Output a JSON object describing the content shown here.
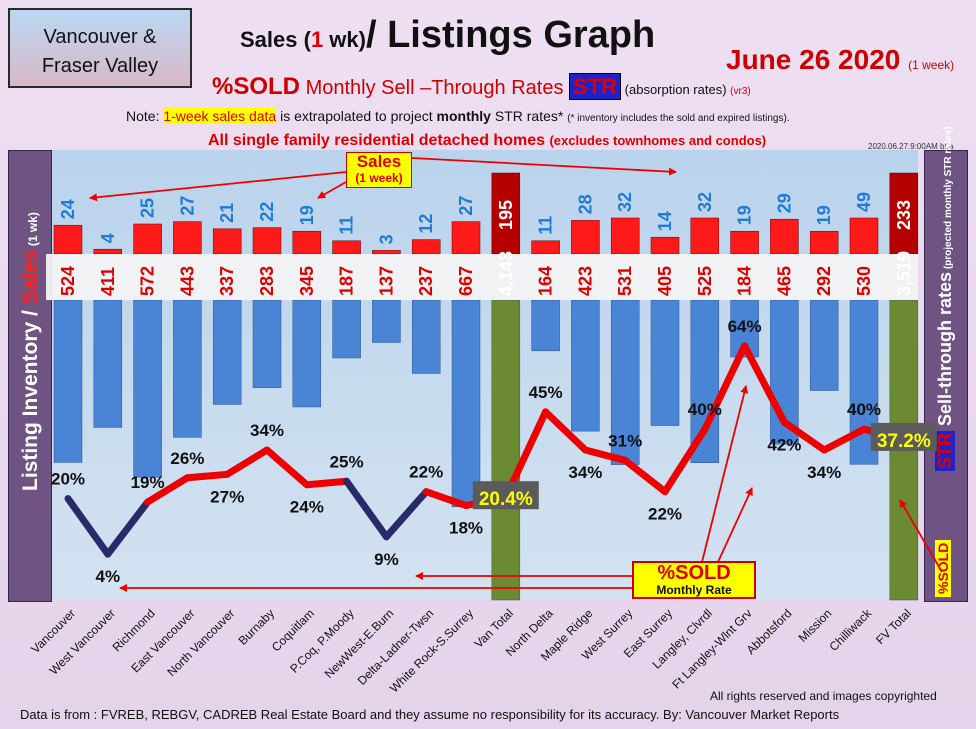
{
  "header": {
    "region_line1": "Vancouver &",
    "region_line2": "Fraser Valley",
    "title_part1": "Sales (",
    "title_1": "1",
    "title_wk": " wk)",
    "title_part2": "/ Listings Graph",
    "date_main": "June 26  2020",
    "date_small": "(1 week)",
    "sub_sold": "%SOLD",
    "sub_text": " Monthly Sell –Through Rates ",
    "sub_str": "STR",
    "sub_abs": " (absorption rates) ",
    "sub_vr": "(vr3)",
    "note_prefix": "Note: ",
    "note_highlight": "1-week sales data",
    "note_mid": " is extrapolated to project ",
    "note_bold": "monthly",
    "note_end": " STR rates* ",
    "note_tiny": "(* inventory includes the sold and expired listings).",
    "scope_main": "All single family residential detached homes ",
    "scope_small": "(excludes townhomes and condos)",
    "stamp": "2020.06.27.9:00AM b5a"
  },
  "labels": {
    "left_axis_a": "Listing Inventory ",
    "left_axis_slash": "/",
    "left_axis_sales": " Sales",
    "left_axis_wk": " (1 wk)",
    "right_axis_main": "Sell-through rates",
    "right_axis_small": " (projected monthly STR rates)",
    "right_sold": "%SOLD",
    "right_str": "STR",
    "sales_callout_top": "Sales",
    "sales_callout_bottom": "(1 week)",
    "sold_callout_top": "%SOLD",
    "sold_callout_bottom": "Monthly Rate"
  },
  "footer": {
    "rights": "All rights reserved and  images copyrighted",
    "source": "Data is from : FVREB, REBGV, CADREB Real Estate Board and they assume no responsibility for its accuracy. By: Vancouver Market Reports"
  },
  "colors": {
    "sales_bar": "#ff1a1a",
    "inventory_bar": "#4a84d4",
    "total_sales_bar": "#b40000",
    "total_inventory_bar": "#6b8a32",
    "sold_line": "#ee0000",
    "sold_line_low": "#2a2a6a",
    "value_blue": "#1f7bd8",
    "value_red": "#dd0000",
    "panel": "#6f5383",
    "str_box": "#1e22c8"
  },
  "chart_data": {
    "type": "bar",
    "categories": [
      "Vancouver",
      "West Vancouver",
      "Richmond",
      "East Vancouver",
      "North Vancouver",
      "Burnaby",
      "Coquitlam",
      "P.Coq, P.Moody",
      "NewWest-E.Burn",
      "Delta-Ladner-Twsn",
      "White Rock-S.Surrey",
      "Van Total",
      "North Delta",
      "Maple Ridge",
      "West Surrey",
      "East Surrey",
      "Langley, Clvrdl",
      "Ft Langley-Wlnt Grv",
      "Abbotsford",
      "Mission",
      "Chilliwack",
      "FV Total"
    ],
    "series": [
      {
        "values": [
          24,
          4,
          25,
          27,
          21,
          22,
          19,
          11,
          3,
          12,
          27,
          195,
          11,
          28,
          32,
          14,
          32,
          19,
          29,
          19,
          49,
          233
        ]
      },
      {
        "values": [
          524,
          411,
          572,
          443,
          337,
          283,
          345,
          187,
          137,
          237,
          667,
          4143,
          164,
          423,
          531,
          405,
          525,
          184,
          465,
          292,
          530,
          3519
        ]
      },
      {
        "values": [
          20,
          4,
          19,
          26,
          27,
          34,
          24,
          25,
          9,
          22,
          18,
          20.4,
          45,
          34,
          31,
          22,
          40,
          64,
          42,
          34,
          40,
          37.2
        ]
      }
    ],
    "value_labels": {
      "sales": [
        "24",
        "4",
        "25",
        "27",
        "21",
        "22",
        "19",
        "11",
        "3",
        "12",
        "27",
        "195",
        "11",
        "28",
        "32",
        "14",
        "32",
        "19",
        "29",
        "19",
        "49",
        "233"
      ],
      "inventory": [
        "524",
        "411",
        "572",
        "443",
        "337",
        "283",
        "345",
        "187",
        "137",
        "237",
        "667",
        "4,143",
        "164",
        "423",
        "531",
        "405",
        "525",
        "184",
        "465",
        "292",
        "530",
        "3,519"
      ],
      "sold": [
        "20%",
        "4%",
        "19%",
        "26%",
        "27%",
        "34%",
        "24%",
        "25%",
        "9%",
        "22%",
        "18%",
        "20.4%",
        "45%",
        "34%",
        "31%",
        "22%",
        "40%",
        "64%",
        "42%",
        "34%",
        "40%",
        "37.2%"
      ]
    },
    "total_indices": [
      11,
      21
    ],
    "grid": false
  }
}
